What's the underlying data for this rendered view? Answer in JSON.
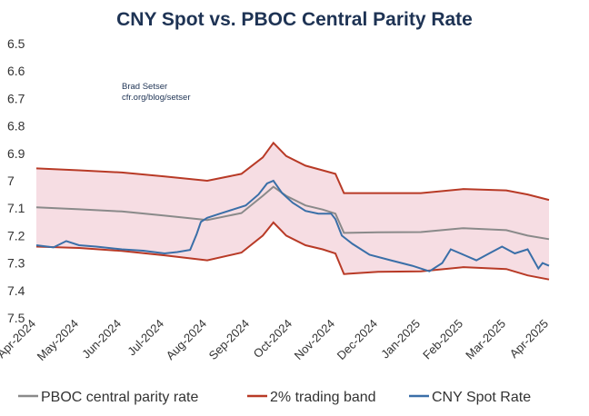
{
  "chart_data": {
    "type": "line",
    "title": "CNY Spot vs. PBOC Central Parity Rate",
    "annotation": [
      "Brad Setser",
      "cfr.org/blog/setser"
    ],
    "ylim": [
      6.5,
      7.5
    ],
    "y_inverted": true,
    "y_ticks": [
      "6.5",
      "6.6",
      "6.7",
      "6.8",
      "6.9",
      "7",
      "7.1",
      "7.2",
      "7.3",
      "7.4",
      "7.5"
    ],
    "y_tick_values": [
      6.5,
      6.6,
      6.7,
      6.8,
      6.9,
      7.0,
      7.1,
      7.2,
      7.3,
      7.4,
      7.5
    ],
    "categories": [
      "Apr-2024",
      "May-2024",
      "Jun-2024",
      "Jul-2024",
      "Aug-2024",
      "Sep-2024",
      "Oct-2024",
      "Nov-2024",
      "Dec-2024",
      "Jan-2025",
      "Feb-2025",
      "Mar-2025",
      "Apr-2025"
    ],
    "xlim": [
      0,
      12
    ],
    "colors": {
      "parity": "#8a8a8a",
      "band": "#b83a26",
      "spot": "#3a6fa8",
      "band_fill": "#f6dde3",
      "title": "#1e3354"
    },
    "legend": [
      {
        "name": "PBOC central parity rate",
        "color": "#8a8a8a"
      },
      {
        "name": "2% trading band",
        "color": "#b83a26"
      },
      {
        "name": "CNY Spot Rate",
        "color": "#3a6fa8"
      }
    ],
    "series": [
      {
        "name": "PBOC central parity rate",
        "points": [
          [
            0,
            7.097
          ],
          [
            1,
            7.104
          ],
          [
            2,
            7.112
          ],
          [
            3,
            7.127
          ],
          [
            4,
            7.143
          ],
          [
            4.8,
            7.118
          ],
          [
            5.3,
            7.055
          ],
          [
            5.55,
            7.022
          ],
          [
            5.85,
            7.055
          ],
          [
            6.3,
            7.09
          ],
          [
            6.7,
            7.105
          ],
          [
            7.0,
            7.12
          ],
          [
            7.2,
            7.19
          ],
          [
            8,
            7.188
          ],
          [
            9,
            7.187
          ],
          [
            10,
            7.173
          ],
          [
            11,
            7.18
          ],
          [
            11.5,
            7.2
          ],
          [
            12,
            7.213
          ]
        ]
      },
      {
        "name": "2% trading band upper",
        "points": [
          [
            0,
            6.955
          ],
          [
            1,
            6.962
          ],
          [
            2,
            6.97
          ],
          [
            3,
            6.984
          ],
          [
            4,
            7.0
          ],
          [
            4.8,
            6.975
          ],
          [
            5.3,
            6.915
          ],
          [
            5.55,
            6.862
          ],
          [
            5.85,
            6.91
          ],
          [
            6.3,
            6.945
          ],
          [
            6.7,
            6.962
          ],
          [
            7.0,
            6.975
          ],
          [
            7.2,
            7.045
          ],
          [
            8,
            7.045
          ],
          [
            9,
            7.045
          ],
          [
            10,
            7.03
          ],
          [
            11,
            7.035
          ],
          [
            11.5,
            7.05
          ],
          [
            12,
            7.07
          ]
        ]
      },
      {
        "name": "2% trading band lower",
        "points": [
          [
            0,
            7.24
          ],
          [
            1,
            7.245
          ],
          [
            2,
            7.256
          ],
          [
            3,
            7.272
          ],
          [
            4,
            7.29
          ],
          [
            4.8,
            7.262
          ],
          [
            5.3,
            7.2
          ],
          [
            5.55,
            7.152
          ],
          [
            5.85,
            7.2
          ],
          [
            6.3,
            7.235
          ],
          [
            6.7,
            7.25
          ],
          [
            7.0,
            7.265
          ],
          [
            7.2,
            7.34
          ],
          [
            8,
            7.332
          ],
          [
            9,
            7.33
          ],
          [
            10,
            7.315
          ],
          [
            11,
            7.322
          ],
          [
            11.5,
            7.345
          ],
          [
            12,
            7.36
          ]
        ]
      },
      {
        "name": "CNY Spot Rate",
        "points": [
          [
            0,
            7.235
          ],
          [
            0.4,
            7.243
          ],
          [
            0.7,
            7.22
          ],
          [
            1.0,
            7.235
          ],
          [
            1.4,
            7.24
          ],
          [
            2.0,
            7.25
          ],
          [
            2.5,
            7.255
          ],
          [
            3.0,
            7.265
          ],
          [
            3.3,
            7.26
          ],
          [
            3.6,
            7.252
          ],
          [
            3.75,
            7.195
          ],
          [
            3.85,
            7.15
          ],
          [
            4.0,
            7.135
          ],
          [
            4.3,
            7.12
          ],
          [
            4.6,
            7.105
          ],
          [
            4.9,
            7.09
          ],
          [
            5.2,
            7.05
          ],
          [
            5.4,
            7.01
          ],
          [
            5.55,
            7.0
          ],
          [
            5.75,
            7.045
          ],
          [
            6.0,
            7.08
          ],
          [
            6.3,
            7.11
          ],
          [
            6.6,
            7.12
          ],
          [
            6.9,
            7.12
          ],
          [
            7.0,
            7.14
          ],
          [
            7.15,
            7.2
          ],
          [
            7.4,
            7.23
          ],
          [
            7.8,
            7.27
          ],
          [
            8.3,
            7.29
          ],
          [
            8.8,
            7.31
          ],
          [
            9.2,
            7.33
          ],
          [
            9.5,
            7.3
          ],
          [
            9.7,
            7.25
          ],
          [
            10.0,
            7.27
          ],
          [
            10.3,
            7.29
          ],
          [
            10.6,
            7.265
          ],
          [
            10.9,
            7.24
          ],
          [
            11.2,
            7.265
          ],
          [
            11.5,
            7.25
          ],
          [
            11.75,
            7.32
          ],
          [
            11.85,
            7.3
          ],
          [
            12,
            7.31
          ]
        ]
      }
    ]
  }
}
